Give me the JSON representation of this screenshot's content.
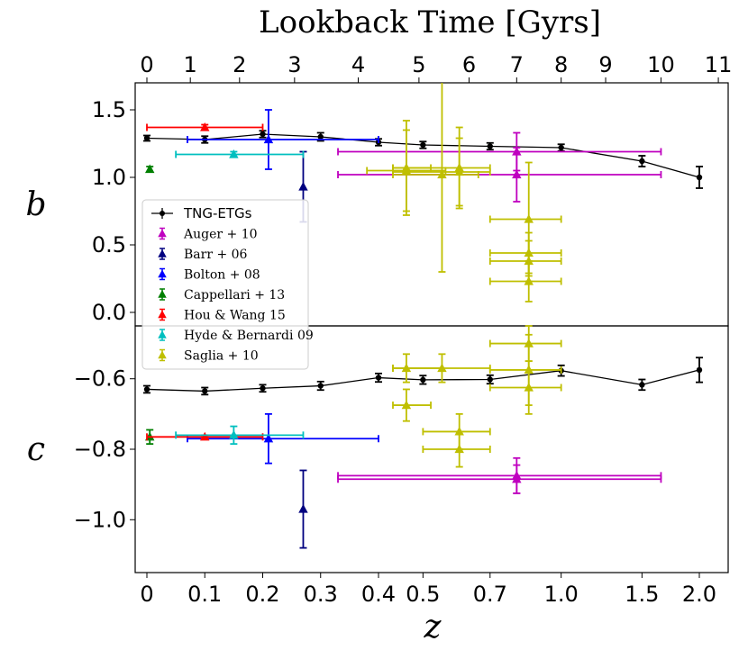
{
  "chart_data": {
    "type": "scatter",
    "title": "Lookback Time [Gyrs]",
    "xlabel": "z",
    "top_ticks": [
      {
        "label": "0",
        "z": 0.0
      },
      {
        "label": "1",
        "z": 0.075
      },
      {
        "label": "2",
        "z": 0.16
      },
      {
        "label": "3",
        "z": 0.255
      },
      {
        "label": "4",
        "z": 0.365
      },
      {
        "label": "5",
        "z": 0.49
      },
      {
        "label": "6",
        "z": 0.63
      },
      {
        "label": "7",
        "z": 0.8
      },
      {
        "label": "8",
        "z": 1.0
      },
      {
        "label": "9",
        "z": 1.25
      },
      {
        "label": "10",
        "z": 1.65
      },
      {
        "label": "11",
        "z": 2.2
      }
    ],
    "bottom_ticks": [
      {
        "label": "0",
        "z": 0.0
      },
      {
        "label": "0.1",
        "z": 0.1
      },
      {
        "label": "0.2",
        "z": 0.2
      },
      {
        "label": "0.3",
        "z": 0.3
      },
      {
        "label": "0.4",
        "z": 0.4
      },
      {
        "label": "0.5",
        "z": 0.5
      },
      {
        "label": "0.7",
        "z": 0.7
      },
      {
        "label": "1.0",
        "z": 1.0
      },
      {
        "label": "1.5",
        "z": 1.5
      },
      {
        "label": "2.0",
        "z": 2.0
      }
    ],
    "x_axis_warp": "z < 0.4 linear, z >= 0.4 logarithmic",
    "panels": [
      {
        "name": "b",
        "ylabel": "b",
        "ylim": [
          -0.1,
          1.7
        ],
        "yticks": [
          {
            "label": "0.0",
            "v": 0.0
          },
          {
            "label": "0.5",
            "v": 0.5
          },
          {
            "label": "1.0",
            "v": 1.0
          },
          {
            "label": "1.5",
            "v": 1.5
          }
        ],
        "series": [
          {
            "name": "TNG-ETGs",
            "color": "#000000",
            "marker": "circle",
            "line": true,
            "points": [
              {
                "z": 0.0,
                "y": 1.29,
                "yerr": 0.02
              },
              {
                "z": 0.1,
                "y": 1.28,
                "yerr": 0.025
              },
              {
                "z": 0.2,
                "y": 1.32,
                "yerr": 0.025
              },
              {
                "z": 0.3,
                "y": 1.3,
                "yerr": 0.03
              },
              {
                "z": 0.4,
                "y": 1.26,
                "yerr": 0.025
              },
              {
                "z": 0.5,
                "y": 1.24,
                "yerr": 0.025
              },
              {
                "z": 0.7,
                "y": 1.23,
                "yerr": 0.025
              },
              {
                "z": 1.0,
                "y": 1.22,
                "yerr": 0.025
              },
              {
                "z": 1.5,
                "y": 1.12,
                "yerr": 0.04
              },
              {
                "z": 2.0,
                "y": 1.0,
                "yerr": 0.08
              }
            ]
          },
          {
            "name": "Auger+10",
            "color": "#bf00bf",
            "marker": "triangle",
            "points": [
              {
                "z": 0.8,
                "y": 1.19,
                "xerr": [
                  0.33,
                  1.65
                ],
                "yerr": 0.14
              },
              {
                "z": 0.8,
                "y": 1.02,
                "xerr": [
                  0.33,
                  1.65
                ],
                "yerr": 0.2
              }
            ]
          },
          {
            "name": "Barr+06",
            "color": "#00007f",
            "marker": "triangle",
            "points": [
              {
                "z": 0.27,
                "y": 0.93,
                "yerr": 0.26
              }
            ]
          },
          {
            "name": "Bolton+08",
            "color": "#0000ff",
            "marker": "triangle",
            "points": [
              {
                "z": 0.21,
                "y": 1.28,
                "xerr": [
                  0.07,
                  0.4
                ],
                "yerr": 0.22
              }
            ]
          },
          {
            "name": "Cappellari+13",
            "color": "#007f00",
            "marker": "triangle",
            "points": [
              {
                "z": 0.005,
                "y": 1.06,
                "yerr": 0.02
              }
            ]
          },
          {
            "name": "Hou & Wang 15",
            "color": "#ff0000",
            "marker": "triangle",
            "points": [
              {
                "z": 0.1,
                "y": 1.37,
                "xerr": [
                  0.0,
                  0.2
                ],
                "yerr": 0.02
              }
            ]
          },
          {
            "name": "Hyde & Bernardi 09",
            "color": "#00bfbf",
            "marker": "triangle",
            "points": [
              {
                "z": 0.15,
                "y": 1.17,
                "xerr": [
                  0.05,
                  0.27
                ],
                "yerr": 0.02
              }
            ]
          },
          {
            "name": "Saglia+10",
            "color": "#bfbf00",
            "marker": "triangle",
            "points": [
              {
                "z": 0.46,
                "y": 1.07,
                "xerr": [
                  0.43,
                  0.52
                ],
                "yerr": 0.35
              },
              {
                "z": 0.46,
                "y": 1.05,
                "xerr": [
                  0.38,
                  0.56
                ],
                "yerr": 0.3
              },
              {
                "z": 0.55,
                "y": 1.02,
                "xerr": [
                  0.43,
                  0.66
                ],
                "yerr": 0.72
              },
              {
                "z": 0.6,
                "y": 1.07,
                "xerr": [
                  0.43,
                  0.7
                ],
                "yerr": 0.3
              },
              {
                "z": 0.6,
                "y": 1.04,
                "xerr": [
                  0.43,
                  0.7
                ],
                "yerr": 0.25
              },
              {
                "z": 0.85,
                "y": 0.69,
                "xerr": [
                  0.7,
                  1.0
                ],
                "yerr": 0.42
              },
              {
                "z": 0.85,
                "y": 0.44,
                "xerr": [
                  0.7,
                  1.0
                ],
                "yerr": 0.15
              },
              {
                "z": 0.85,
                "y": 0.38,
                "xerr": [
                  0.7,
                  1.0
                ],
                "yerr": 0.15
              },
              {
                "z": 0.85,
                "y": 0.23,
                "xerr": [
                  0.7,
                  1.0
                ],
                "yerr": 0.15
              }
            ]
          }
        ]
      },
      {
        "name": "c",
        "ylabel": "c",
        "ylim": [
          -1.15,
          -0.45
        ],
        "yticks": [
          {
            "label": "−1.0",
            "v": -1.0
          },
          {
            "label": "−0.8",
            "v": -0.8
          },
          {
            "label": "−0.6",
            "v": -0.6
          }
        ],
        "series": [
          {
            "name": "TNG-ETGs",
            "color": "#000000",
            "marker": "circle",
            "line": true,
            "points": [
              {
                "z": 0.0,
                "y": -0.63,
                "yerr": 0.01
              },
              {
                "z": 0.1,
                "y": -0.635,
                "yerr": 0.01
              },
              {
                "z": 0.2,
                "y": -0.627,
                "yerr": 0.01
              },
              {
                "z": 0.3,
                "y": -0.62,
                "yerr": 0.012
              },
              {
                "z": 0.4,
                "y": -0.597,
                "yerr": 0.012
              },
              {
                "z": 0.5,
                "y": -0.603,
                "yerr": 0.012
              },
              {
                "z": 0.7,
                "y": -0.602,
                "yerr": 0.012
              },
              {
                "z": 1.0,
                "y": -0.577,
                "yerr": 0.015
              },
              {
                "z": 1.5,
                "y": -0.617,
                "yerr": 0.015
              },
              {
                "z": 2.0,
                "y": -0.575,
                "yerr": 0.035
              }
            ]
          },
          {
            "name": "Auger+10",
            "color": "#bf00bf",
            "marker": "triangle",
            "points": [
              {
                "z": 0.8,
                "y": -0.875,
                "xerr": [
                  0.33,
                  1.65
                ],
                "yerr": 0.05
              },
              {
                "z": 0.8,
                "y": -0.885,
                "xerr": [
                  0.33,
                  1.65
                ],
                "yerr": 0.04
              }
            ]
          },
          {
            "name": "Barr+06",
            "color": "#00007f",
            "marker": "triangle",
            "points": [
              {
                "z": 0.27,
                "y": -0.97,
                "yerr": 0.11
              }
            ]
          },
          {
            "name": "Bolton+08",
            "color": "#0000ff",
            "marker": "triangle",
            "points": [
              {
                "z": 0.21,
                "y": -0.77,
                "xerr": [
                  0.07,
                  0.4
                ],
                "yerr": 0.07
              }
            ]
          },
          {
            "name": "Cappellari+13",
            "color": "#007f00",
            "marker": "triangle",
            "points": [
              {
                "z": 0.005,
                "y": -0.765,
                "yerr": 0.02
              }
            ]
          },
          {
            "name": "Hou & Wang 15",
            "color": "#ff0000",
            "marker": "triangle",
            "points": [
              {
                "z": 0.1,
                "y": -0.765,
                "xerr": [
                  0.0,
                  0.2
                ],
                "yerr": 0.005
              }
            ]
          },
          {
            "name": "Hyde & Bernardi 09",
            "color": "#00bfbf",
            "marker": "triangle",
            "points": [
              {
                "z": 0.15,
                "y": -0.76,
                "xerr": [
                  0.05,
                  0.27
                ],
                "yerr": 0.025
              }
            ]
          },
          {
            "name": "Saglia+10",
            "color": "#bfbf00",
            "marker": "triangle",
            "points": [
              {
                "z": 0.46,
                "y": -0.57,
                "xerr": [
                  0.43,
                  0.55
                ],
                "yerr": 0.04
              },
              {
                "z": 0.46,
                "y": -0.675,
                "xerr": [
                  0.43,
                  0.52
                ],
                "yerr": 0.045
              },
              {
                "z": 0.55,
                "y": -0.57,
                "xerr": [
                  0.43,
                  0.7
                ],
                "yerr": 0.04
              },
              {
                "z": 0.6,
                "y": -0.75,
                "xerr": [
                  0.5,
                  0.7
                ],
                "yerr": 0.05
              },
              {
                "z": 0.6,
                "y": -0.8,
                "xerr": [
                  0.5,
                  0.7
                ],
                "yerr": 0.05
              },
              {
                "z": 0.85,
                "y": -0.5,
                "xerr": [
                  0.7,
                  1.0
                ],
                "yerr": 0.05
              },
              {
                "z": 0.85,
                "y": -0.575,
                "xerr": [
                  0.7,
                  1.0
                ],
                "yerr": 0.1
              },
              {
                "z": 0.85,
                "y": -0.625,
                "xerr": [
                  0.7,
                  1.0
                ],
                "yerr": 0.075
              }
            ]
          }
        ]
      }
    ],
    "legend": {
      "placement": "left, spanning both panels",
      "entries": [
        {
          "label": "TNG-ETGs",
          "color": "#000000",
          "marker": "circle"
        },
        {
          "label": "Auger + 10",
          "color": "#bf00bf",
          "marker": "triangle"
        },
        {
          "label": "Barr + 06",
          "color": "#00007f",
          "marker": "triangle"
        },
        {
          "label": "Bolton + 08",
          "color": "#0000ff",
          "marker": "triangle"
        },
        {
          "label": "Cappellari + 13",
          "color": "#007f00",
          "marker": "triangle"
        },
        {
          "label": "Hou & Wang 15",
          "color": "#ff0000",
          "marker": "triangle"
        },
        {
          "label": "Hyde & Bernardi 09",
          "color": "#00bfbf",
          "marker": "triangle"
        },
        {
          "label": "Saglia + 10",
          "color": "#bfbf00",
          "marker": "triangle"
        }
      ]
    }
  }
}
